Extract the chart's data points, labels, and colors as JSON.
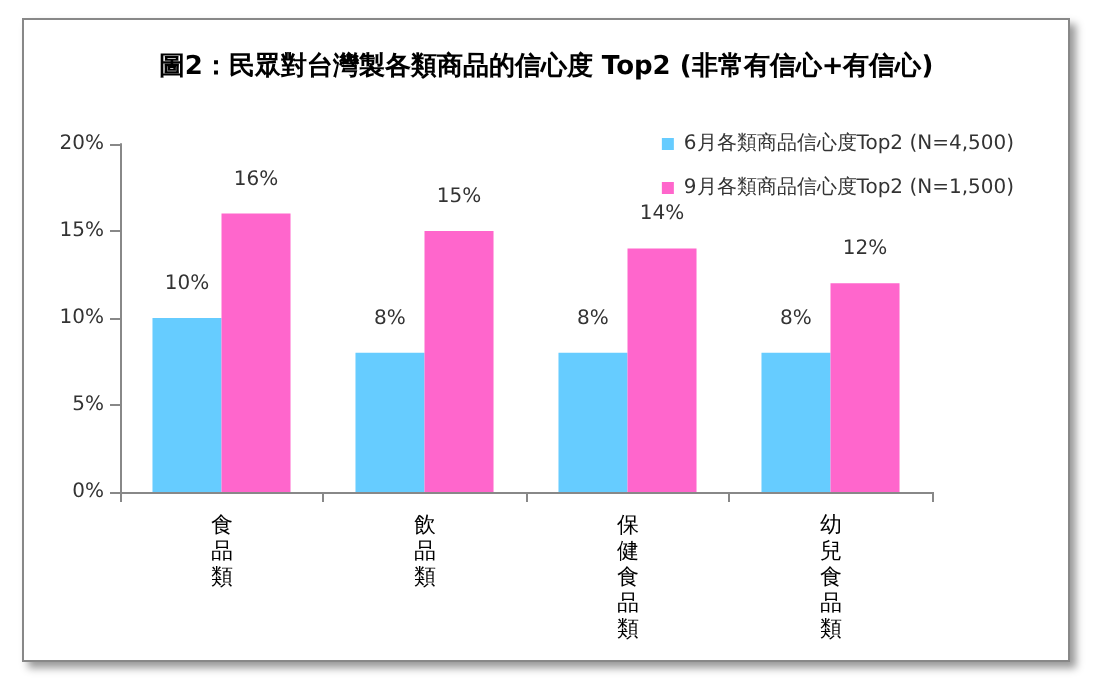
{
  "chart_data": {
    "type": "bar",
    "title": "圖2：民眾對台灣製各類商品的信心度 Top2 (非常有信心+有信心)",
    "categories": [
      "食品類",
      "飲品類",
      "保健食品類",
      "幼兒食品類"
    ],
    "series": [
      {
        "name": "6月各類商品信心度Top2 (N=4,500)",
        "color": "#66ccff",
        "values": [
          10,
          8,
          8,
          8
        ],
        "value_labels": [
          "10%",
          "8%",
          "8%",
          "8%"
        ]
      },
      {
        "name": "9月各類商品信心度Top2 (N=1,500)",
        "color": "#ff66cc",
        "values": [
          16,
          15,
          14,
          12
        ],
        "value_labels": [
          "16%",
          "15%",
          "14%",
          "12%"
        ]
      }
    ],
    "ylim": [
      0,
      20
    ],
    "yticks": [
      {
        "value": 0,
        "label": "0%"
      },
      {
        "value": 5,
        "label": "5%"
      },
      {
        "value": 10,
        "label": "10%"
      },
      {
        "value": 15,
        "label": "15%"
      },
      {
        "value": 20,
        "label": "20%"
      }
    ],
    "grid": false,
    "legend": "top right"
  }
}
